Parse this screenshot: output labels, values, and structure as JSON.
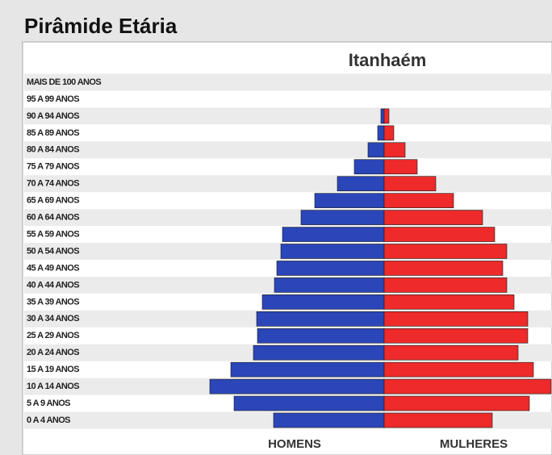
{
  "chart_data": {
    "type": "pyramid",
    "title": "Pirâmide Etária",
    "subtitle": "Itanhaém",
    "categories": [
      "MAIS DE 100 ANOS",
      "95 A 99 ANOS",
      "90 A 94 ANOS",
      "85 A 89 ANOS",
      "80 A 84 ANOS",
      "75 A 79 ANOS",
      "70 A 74 ANOS",
      "65 A 69 ANOS",
      "60 A 64 ANOS",
      "55 A 59 ANOS",
      "50 A 54 ANOS",
      "45 A 49 ANOS",
      "40 A 44 ANOS",
      "35 A 39 ANOS",
      "30 A 34 ANOS",
      "25 A 29 ANOS",
      "20 A 24 ANOS",
      "15 A 19 ANOS",
      "10 A 14 ANOS",
      "5 A 9 ANOS",
      "0 A 4 ANOS"
    ],
    "series": [
      {
        "name": "HOMENS",
        "color": "#2b46b8",
        "values": [
          0,
          0,
          4,
          8,
          20,
          37,
          58,
          86,
          103,
          126,
          128,
          133,
          136,
          151,
          158,
          157,
          162,
          190,
          216,
          186,
          137
        ]
      },
      {
        "name": "MULHERES",
        "color": "#ee2a2a",
        "values": [
          0,
          0,
          6,
          12,
          26,
          41,
          64,
          86,
          122,
          137,
          152,
          147,
          152,
          161,
          178,
          178,
          166,
          185,
          207,
          180,
          134
        ]
      }
    ]
  }
}
